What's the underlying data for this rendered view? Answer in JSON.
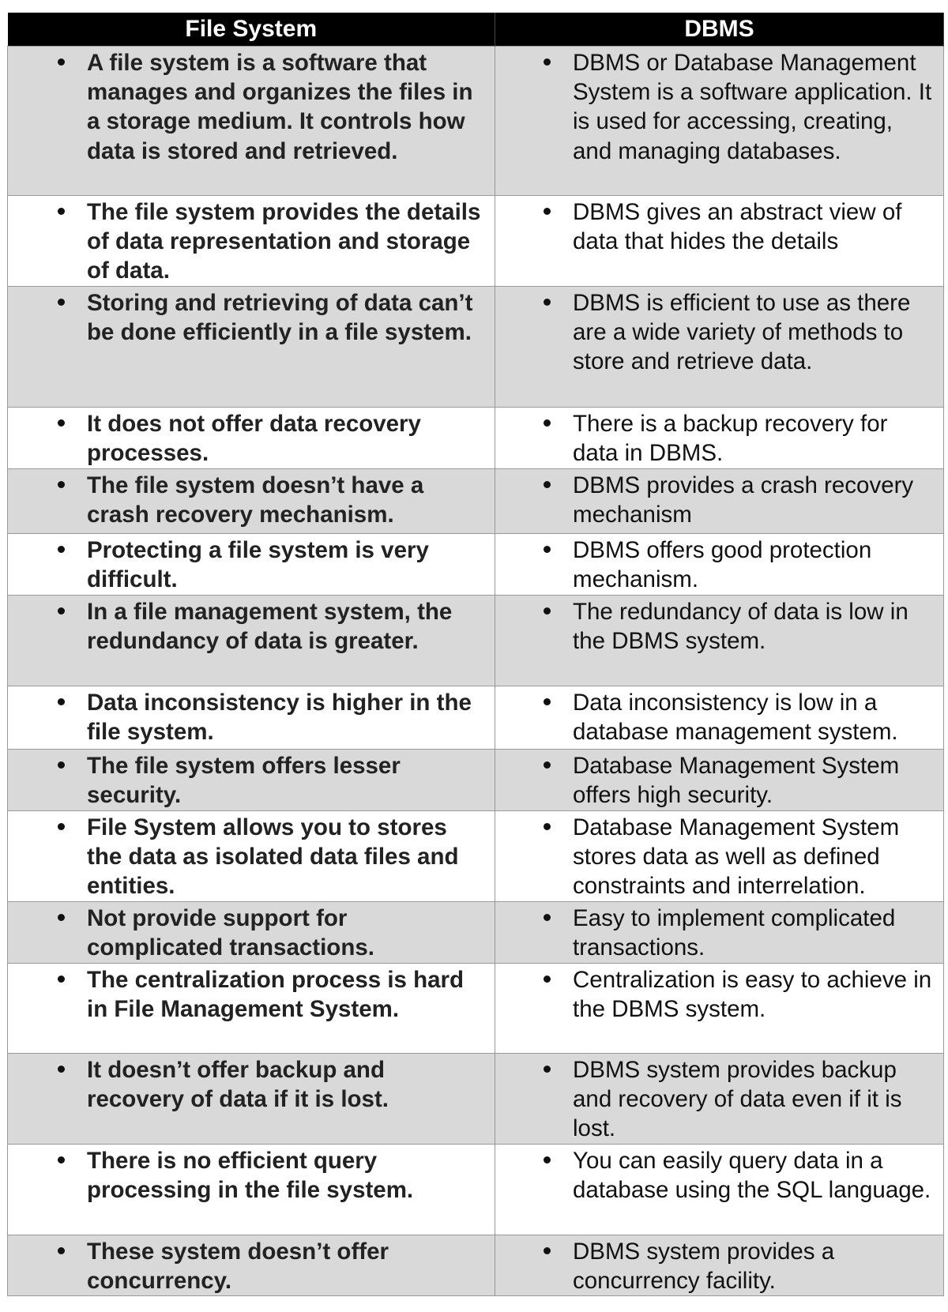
{
  "headers": [
    "File System",
    "DBMS"
  ],
  "rows": [
    {
      "fs": "A file system is a software that manages and organizes the files in a storage medium. It controls how data is stored and retrieved.",
      "dbms": "DBMS or Database Management System is a software application. It is used for accessing, creating, and managing databases."
    },
    {
      "fs": "The file system provides the details of data representation and storage of data.",
      "dbms": "DBMS gives an abstract view of data that hides the details"
    },
    {
      "fs": "Storing and retrieving of data can’t be done efficiently in a file system.",
      "dbms": "DBMS is efficient to use as there are a wide variety of methods to store and retrieve data."
    },
    {
      "fs": "It does not offer data recovery processes.",
      "dbms": "There is a backup recovery for data in DBMS."
    },
    {
      "fs": "The file system doesn’t have a crash recovery mechanism.",
      "dbms": "DBMS provides a crash recovery mechanism"
    },
    {
      "fs": "Protecting a file system is very difficult.",
      "dbms": "DBMS offers good protection mechanism."
    },
    {
      "fs": "In a file management system, the redundancy of data is greater.",
      "dbms": "The redundancy of data is low in the DBMS system."
    },
    {
      "fs": "Data inconsistency is higher in the file system.",
      "dbms": "Data inconsistency is low in a database management system."
    },
    {
      "fs": "The file system offers lesser security.",
      "dbms": "Database Management System offers high security."
    },
    {
      "fs": "File System allows you to stores the data as isolated data files and entities.",
      "dbms": "Database Management System stores data as well as defined constraints and interrelation."
    },
    {
      "fs": "Not provide support for complicated transactions.",
      "dbms": "Easy to implement complicated transactions."
    },
    {
      "fs": "The centralization process is hard in File Management System.",
      "dbms": "Centralization is easy to achieve in the DBMS system."
    },
    {
      "fs": "It doesn’t offer backup and recovery of data if it is lost.",
      "dbms": "DBMS system provides backup and recovery of data even if it is lost."
    },
    {
      "fs": "There is no efficient query processing in the file system.",
      "dbms": "You can easily query data in a database using the SQL language."
    },
    {
      "fs": "These system doesn’t offer concurrency.",
      "dbms": "DBMS system provides a concurrency facility."
    }
  ]
}
